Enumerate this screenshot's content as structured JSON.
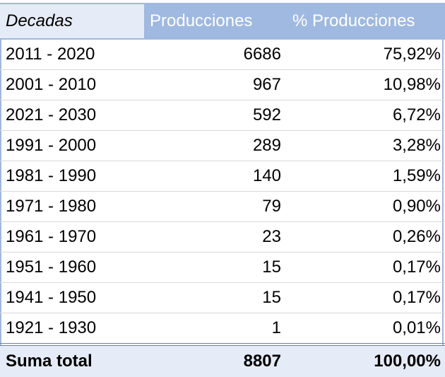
{
  "table": {
    "headers": {
      "decadas": "Decadas",
      "producciones": "Producciones",
      "porcentaje": "% Producciones"
    },
    "rows": [
      {
        "decada": "2011 - 2020",
        "producciones": "6686",
        "porcentaje": "75,92%"
      },
      {
        "decada": "2001 - 2010",
        "producciones": "967",
        "porcentaje": "10,98%"
      },
      {
        "decada": "2021 - 2030",
        "producciones": "592",
        "porcentaje": "6,72%"
      },
      {
        "decada": "1991 - 2000",
        "producciones": "289",
        "porcentaje": "3,28%"
      },
      {
        "decada": "1981 - 1990",
        "producciones": "140",
        "porcentaje": "1,59%"
      },
      {
        "decada": "1971 - 1980",
        "producciones": "79",
        "porcentaje": "0,90%"
      },
      {
        "decada": "1961 - 1970",
        "producciones": "23",
        "porcentaje": "0,26%"
      },
      {
        "decada": "1951 - 1960",
        "producciones": "15",
        "porcentaje": "0,17%"
      },
      {
        "decada": "1941 - 1950",
        "producciones": "15",
        "porcentaje": "0,17%"
      },
      {
        "decada": "1921 - 1930",
        "producciones": "1",
        "porcentaje": "0,01%"
      }
    ],
    "total": {
      "label": "Suma total",
      "producciones": "8807",
      "porcentaje": "100,00%"
    }
  },
  "colors": {
    "header_accent": "#9fb9e0",
    "header_light": "#e6ecf7",
    "header_text": "#ffffff",
    "total_background": "#e6ecf7"
  }
}
